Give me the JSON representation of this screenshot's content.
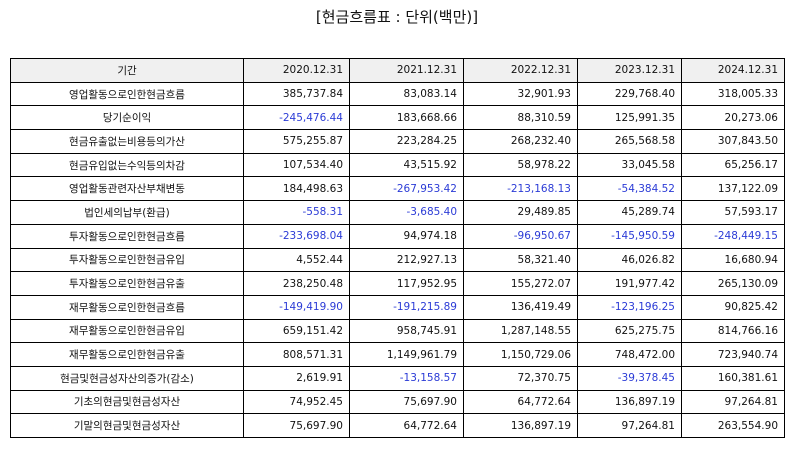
{
  "page": {
    "title": "[현금흐름표 : 단위(백만)]"
  },
  "table": {
    "headers": [
      "기간",
      "2020.12.31",
      "2021.12.31",
      "2022.12.31",
      "2023.12.31",
      "2024.12.31"
    ],
    "rows": [
      {
        "label": "영업활동으로인한현금흐름",
        "values": [
          "385,737.84",
          "83,083.14",
          "32,901.93",
          "229,768.40",
          "318,005.33"
        ]
      },
      {
        "label": "당기순이익",
        "values": [
          "-245,476.44",
          "183,668.66",
          "88,310.59",
          "125,991.35",
          "20,273.06"
        ]
      },
      {
        "label": "현금유출없는비용등의가산",
        "values": [
          "575,255.87",
          "223,284.25",
          "268,232.40",
          "265,568.58",
          "307,843.50"
        ]
      },
      {
        "label": "현금유입없는수익등의차감",
        "values": [
          "107,534.40",
          "43,515.92",
          "58,978.22",
          "33,045.58",
          "65,256.17"
        ]
      },
      {
        "label": "영업활동관련자산부채변동",
        "values": [
          "184,498.63",
          "-267,953.42",
          "-213,168.13",
          "-54,384.52",
          "137,122.09"
        ]
      },
      {
        "label": "법인세의납부(환급)",
        "values": [
          "-558.31",
          "-3,685.40",
          "29,489.85",
          "45,289.74",
          "57,593.17"
        ]
      },
      {
        "label": "투자활동으로인한현금흐름",
        "values": [
          "-233,698.04",
          "94,974.18",
          "-96,950.67",
          "-145,950.59",
          "-248,449.15"
        ]
      },
      {
        "label": "투자활동으로인한현금유입",
        "values": [
          "4,552.44",
          "212,927.13",
          "58,321.40",
          "46,026.82",
          "16,680.94"
        ]
      },
      {
        "label": "투자활동으로인한현금유출",
        "values": [
          "238,250.48",
          "117,952.95",
          "155,272.07",
          "191,977.42",
          "265,130.09"
        ]
      },
      {
        "label": "재무활동으로인한현금흐름",
        "values": [
          "-149,419.90",
          "-191,215.89",
          "136,419.49",
          "-123,196.25",
          "90,825.42"
        ]
      },
      {
        "label": "재무활동으로인한현금유입",
        "values": [
          "659,151.42",
          "958,745.91",
          "1,287,148.55",
          "625,275.75",
          "814,766.16"
        ]
      },
      {
        "label": "재무활동으로인한현금유출",
        "values": [
          "808,571.31",
          "1,149,961.79",
          "1,150,729.06",
          "748,472.00",
          "723,940.74"
        ]
      },
      {
        "label": "현금및현금성자산의증가(감소)",
        "values": [
          "2,619.91",
          "-13,158.57",
          "72,370.75",
          "-39,378.45",
          "160,381.61"
        ]
      },
      {
        "label": "기초의현금및현금성자산",
        "values": [
          "74,952.45",
          "75,697.90",
          "64,772.64",
          "136,897.19",
          "97,264.81"
        ]
      },
      {
        "label": "기말의현금및현금성자산",
        "values": [
          "75,697.90",
          "64,772.64",
          "136,897.19",
          "97,264.81",
          "263,554.90"
        ]
      }
    ]
  },
  "colors": {
    "negative_text": "#2b3bd6",
    "header_background": "#f0f0f0",
    "border": "#000000"
  }
}
